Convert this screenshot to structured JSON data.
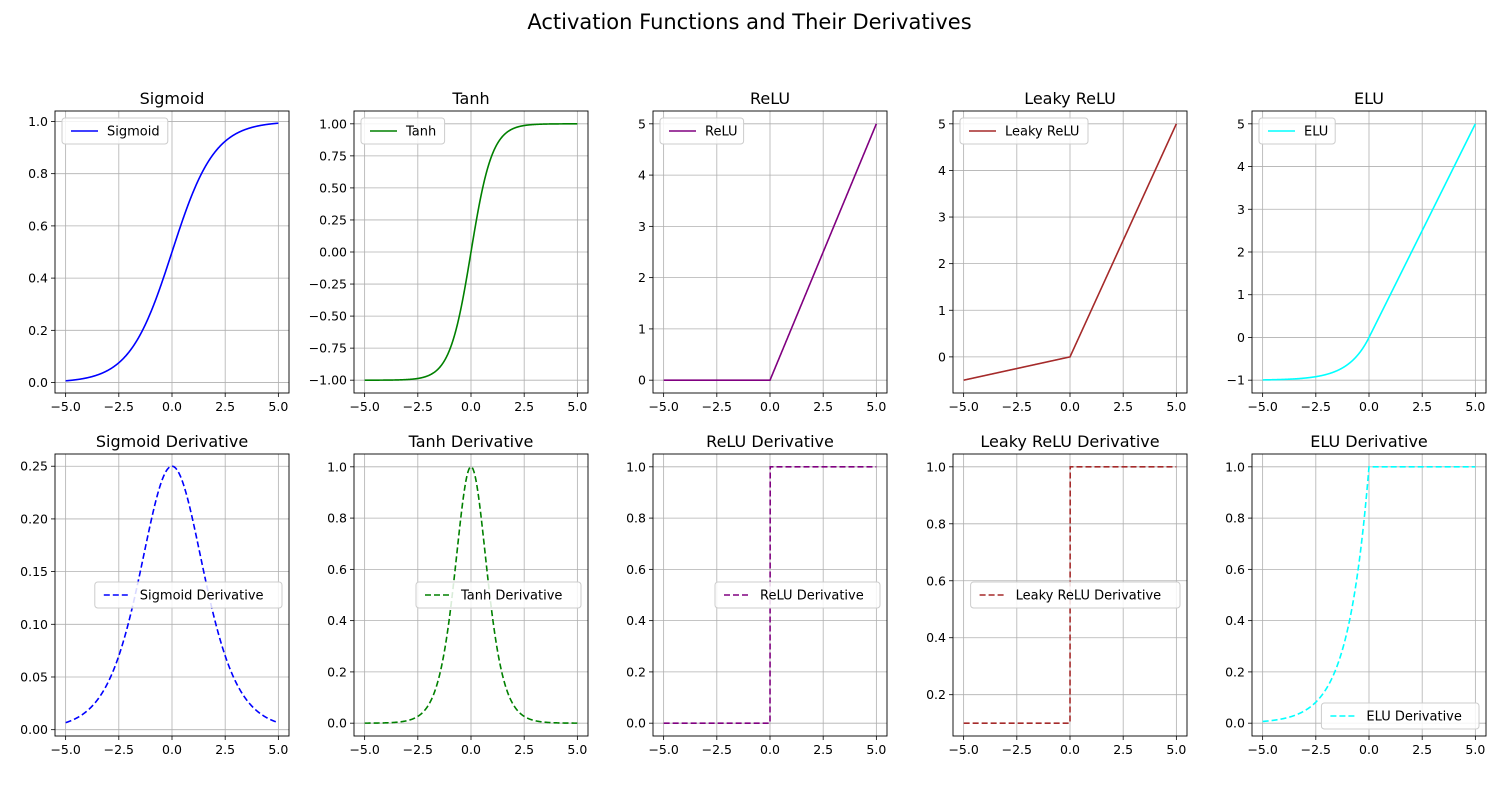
{
  "figure": {
    "title": "Activation Functions and Their Derivatives"
  },
  "chart_data": [
    {
      "type": "line",
      "title": "Sigmoid",
      "xlim": [
        -5.5,
        5.5
      ],
      "ylim": [
        -0.04,
        1.04
      ],
      "grid": true,
      "legend_loc": "upper left",
      "x_range": [
        -5,
        5
      ],
      "xticks": [
        -5,
        -2.5,
        0,
        2.5,
        5
      ],
      "xtick_labels": [
        "−5.0",
        "−2.5",
        "0.0",
        "2.5",
        "5.0"
      ],
      "yticks": [
        0,
        0.2,
        0.4,
        0.6,
        0.8,
        1.0
      ],
      "ytick_labels": [
        "0.0",
        "0.2",
        "0.4",
        "0.6",
        "0.8",
        "1.0"
      ],
      "series": [
        {
          "name": "Sigmoid",
          "function": "sigmoid",
          "color": "#0000ff",
          "dash": false
        }
      ]
    },
    {
      "type": "line",
      "title": "Tanh",
      "xlim": [
        -5.5,
        5.5
      ],
      "ylim": [
        -1.1,
        1.1
      ],
      "grid": true,
      "legend_loc": "upper left",
      "x_range": [
        -5,
        5
      ],
      "xticks": [
        -5,
        -2.5,
        0,
        2.5,
        5
      ],
      "xtick_labels": [
        "−5.0",
        "−2.5",
        "0.0",
        "2.5",
        "5.0"
      ],
      "yticks": [
        -1,
        -0.75,
        -0.5,
        -0.25,
        0,
        0.25,
        0.5,
        0.75,
        1
      ],
      "ytick_labels": [
        "−1.00",
        "−0.75",
        "−0.50",
        "−0.25",
        "0.00",
        "0.25",
        "0.50",
        "0.75",
        "1.00"
      ],
      "series": [
        {
          "name": "Tanh",
          "function": "tanh",
          "color": "#008000",
          "dash": false
        }
      ]
    },
    {
      "type": "line",
      "title": "ReLU",
      "xlim": [
        -5.5,
        5.5
      ],
      "ylim": [
        -0.25,
        5.25
      ],
      "grid": true,
      "legend_loc": "upper left",
      "x_range": [
        -5,
        5
      ],
      "xticks": [
        -5,
        -2.5,
        0,
        2.5,
        5
      ],
      "xtick_labels": [
        "−5.0",
        "−2.5",
        "0.0",
        "2.5",
        "5.0"
      ],
      "yticks": [
        0,
        1,
        2,
        3,
        4,
        5
      ],
      "ytick_labels": [
        "0",
        "1",
        "2",
        "3",
        "4",
        "5"
      ],
      "series": [
        {
          "name": "ReLU",
          "function": "relu",
          "color": "#800080",
          "dash": false
        }
      ]
    },
    {
      "type": "line",
      "title": "Leaky ReLU",
      "xlim": [
        -5.5,
        5.5
      ],
      "ylim": [
        -0.775,
        5.275
      ],
      "grid": true,
      "legend_loc": "upper left",
      "x_range": [
        -5,
        5
      ],
      "xticks": [
        -5,
        -2.5,
        0,
        2.5,
        5
      ],
      "xtick_labels": [
        "−5.0",
        "−2.5",
        "0.0",
        "2.5",
        "5.0"
      ],
      "yticks": [
        0,
        1,
        2,
        3,
        4,
        5
      ],
      "ytick_labels": [
        "0",
        "1",
        "2",
        "3",
        "4",
        "5"
      ],
      "series": [
        {
          "name": "Leaky ReLU",
          "function": "leaky_relu",
          "color": "#a52a2a",
          "dash": false
        }
      ]
    },
    {
      "type": "line",
      "title": "ELU",
      "xlim": [
        -5.5,
        5.5
      ],
      "ylim": [
        -1.3,
        5.3
      ],
      "grid": true,
      "legend_loc": "upper left",
      "x_range": [
        -5,
        5
      ],
      "xticks": [
        -5,
        -2.5,
        0,
        2.5,
        5
      ],
      "xtick_labels": [
        "−5.0",
        "−2.5",
        "0.0",
        "2.5",
        "5.0"
      ],
      "yticks": [
        -1,
        0,
        1,
        2,
        3,
        4,
        5
      ],
      "ytick_labels": [
        "−1",
        "0",
        "1",
        "2",
        "3",
        "4",
        "5"
      ],
      "series": [
        {
          "name": "ELU",
          "function": "elu",
          "color": "#00ffff",
          "dash": false
        }
      ]
    },
    {
      "type": "line",
      "title": "Sigmoid Derivative",
      "xlim": [
        -5.5,
        5.5
      ],
      "ylim": [
        -0.006,
        0.2616
      ],
      "grid": true,
      "legend_loc": "center right",
      "x_range": [
        -5,
        5
      ],
      "xticks": [
        -5,
        -2.5,
        0,
        2.5,
        5
      ],
      "xtick_labels": [
        "−5.0",
        "−2.5",
        "0.0",
        "2.5",
        "5.0"
      ],
      "yticks": [
        0,
        0.05,
        0.1,
        0.15,
        0.2,
        0.25
      ],
      "ytick_labels": [
        "0.00",
        "0.05",
        "0.10",
        "0.15",
        "0.20",
        "0.25"
      ],
      "series": [
        {
          "name": "Sigmoid Derivative",
          "function": "sigmoid_derivative",
          "color": "#0000ff",
          "dash": true
        }
      ]
    },
    {
      "type": "line",
      "title": "Tanh Derivative",
      "xlim": [
        -5.5,
        5.5
      ],
      "ylim": [
        -0.05,
        1.05
      ],
      "grid": true,
      "legend_loc": "center right",
      "x_range": [
        -5,
        5
      ],
      "xticks": [
        -5,
        -2.5,
        0,
        2.5,
        5
      ],
      "xtick_labels": [
        "−5.0",
        "−2.5",
        "0.0",
        "2.5",
        "5.0"
      ],
      "yticks": [
        0,
        0.2,
        0.4,
        0.6,
        0.8,
        1.0
      ],
      "ytick_labels": [
        "0.0",
        "0.2",
        "0.4",
        "0.6",
        "0.8",
        "1.0"
      ],
      "series": [
        {
          "name": "Tanh Derivative",
          "function": "tanh_derivative",
          "color": "#008000",
          "dash": true
        }
      ]
    },
    {
      "type": "line",
      "title": "ReLU Derivative",
      "xlim": [
        -5.5,
        5.5
      ],
      "ylim": [
        -0.05,
        1.05
      ],
      "grid": true,
      "legend_loc": "center right",
      "x_range": [
        -5,
        5
      ],
      "xticks": [
        -5,
        -2.5,
        0,
        2.5,
        5
      ],
      "xtick_labels": [
        "−5.0",
        "−2.5",
        "0.0",
        "2.5",
        "5.0"
      ],
      "yticks": [
        0,
        0.2,
        0.4,
        0.6,
        0.8,
        1.0
      ],
      "ytick_labels": [
        "0.0",
        "0.2",
        "0.4",
        "0.6",
        "0.8",
        "1.0"
      ],
      "series": [
        {
          "name": "ReLU Derivative",
          "function": "relu_derivative",
          "color": "#800080",
          "dash": true
        }
      ]
    },
    {
      "type": "line",
      "title": "Leaky ReLU Derivative",
      "xlim": [
        -5.5,
        5.5
      ],
      "ylim": [
        0.055,
        1.045
      ],
      "grid": true,
      "legend_loc": "center right",
      "x_range": [
        -5,
        5
      ],
      "xticks": [
        -5,
        -2.5,
        0,
        2.5,
        5
      ],
      "xtick_labels": [
        "−5.0",
        "−2.5",
        "0.0",
        "2.5",
        "5.0"
      ],
      "yticks": [
        0.2,
        0.4,
        0.6,
        0.8,
        1.0
      ],
      "ytick_labels": [
        "0.2",
        "0.4",
        "0.6",
        "0.8",
        "1.0"
      ],
      "series": [
        {
          "name": "Leaky ReLU Derivative",
          "function": "leaky_relu_derivative",
          "color": "#a52a2a",
          "dash": true
        }
      ]
    },
    {
      "type": "line",
      "title": "ELU Derivative",
      "xlim": [
        -5.5,
        5.5
      ],
      "ylim": [
        -0.05,
        1.05
      ],
      "grid": true,
      "legend_loc": "lower right",
      "x_range": [
        -5,
        5
      ],
      "xticks": [
        -5,
        -2.5,
        0,
        2.5,
        5
      ],
      "xtick_labels": [
        "−5.0",
        "−2.5",
        "0.0",
        "2.5",
        "5.0"
      ],
      "yticks": [
        0,
        0.2,
        0.4,
        0.6,
        0.8,
        1.0
      ],
      "ytick_labels": [
        "0.0",
        "0.2",
        "0.4",
        "0.6",
        "0.8",
        "1.0"
      ],
      "series": [
        {
          "name": "ELU Derivative",
          "function": "elu_derivative",
          "color": "#00ffff",
          "dash": true
        }
      ]
    }
  ]
}
